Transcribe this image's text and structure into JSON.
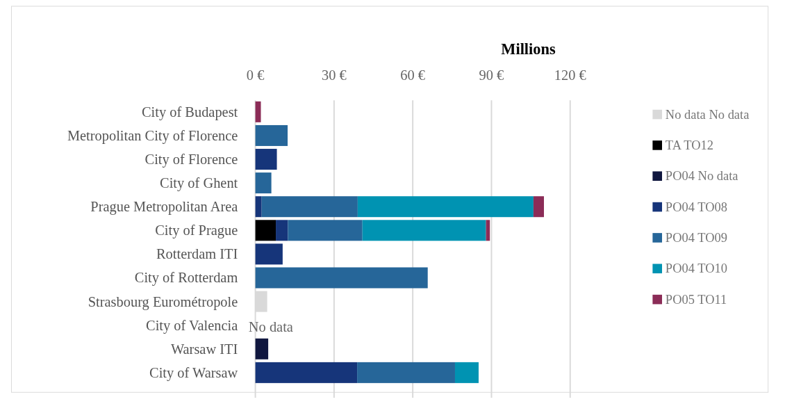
{
  "chart_data": {
    "type": "bar",
    "orientation": "horizontal",
    "stacked": true,
    "xlabel": "Millions",
    "categories": [
      "City of Budapest",
      "Metropolitan City of Florence",
      "City of Florence",
      "City of Ghent",
      "Prague Metropolitan Area",
      "City of Prague",
      "Rotterdam ITI",
      "City of Rotterdam",
      "Strasbourg Eurométropole",
      "City of Valencia",
      "Warsaw ITI",
      "City of Warsaw"
    ],
    "series": [
      {
        "name": "No data No data",
        "color": "#d9d9d9",
        "values": [
          null,
          null,
          null,
          null,
          null,
          null,
          null,
          null,
          4.5,
          null,
          null,
          null
        ]
      },
      {
        "name": "TA TO12",
        "color": "#000000",
        "values": [
          null,
          null,
          null,
          null,
          null,
          7.8,
          null,
          null,
          null,
          null,
          null,
          null
        ]
      },
      {
        "name": "PO04 No data",
        "color": "#10173f",
        "values": [
          null,
          null,
          null,
          null,
          null,
          null,
          null,
          null,
          null,
          null,
          4.9,
          null
        ]
      },
      {
        "name": "PO04 TO08",
        "color": "#16357a",
        "values": [
          null,
          null,
          8.2,
          null,
          2.4,
          4.6,
          10.4,
          null,
          null,
          null,
          null,
          38.8
        ]
      },
      {
        "name": "PO04 TO09",
        "color": "#266699",
        "values": [
          null,
          12.3,
          null,
          6.1,
          36.6,
          28.4,
          null,
          65.7,
          null,
          null,
          null,
          37.3
        ]
      },
      {
        "name": "PO04 TO10",
        "color": "#0093b2",
        "values": [
          null,
          null,
          null,
          null,
          67.0,
          47.1,
          null,
          null,
          null,
          null,
          null,
          9.0
        ]
      },
      {
        "name": "PO05 TO11",
        "color": "#8b2c57",
        "values": [
          2.1,
          null,
          null,
          null,
          4.0,
          1.5,
          null,
          null,
          null,
          null,
          null,
          null
        ]
      }
    ],
    "xlim": [
      0,
      120
    ],
    "xticks": [
      {
        "value": 0,
        "label": "0 €"
      },
      {
        "value": 30,
        "label": "30 €"
      },
      {
        "value": 60,
        "label": "60 €"
      },
      {
        "value": 90,
        "label": "90 €"
      },
      {
        "value": 120,
        "label": "120 €"
      }
    ],
    "grid": "x",
    "legend": "right",
    "annotations": [
      {
        "text": "No data",
        "x": 0,
        "y": "City of Valencia"
      }
    ]
  }
}
